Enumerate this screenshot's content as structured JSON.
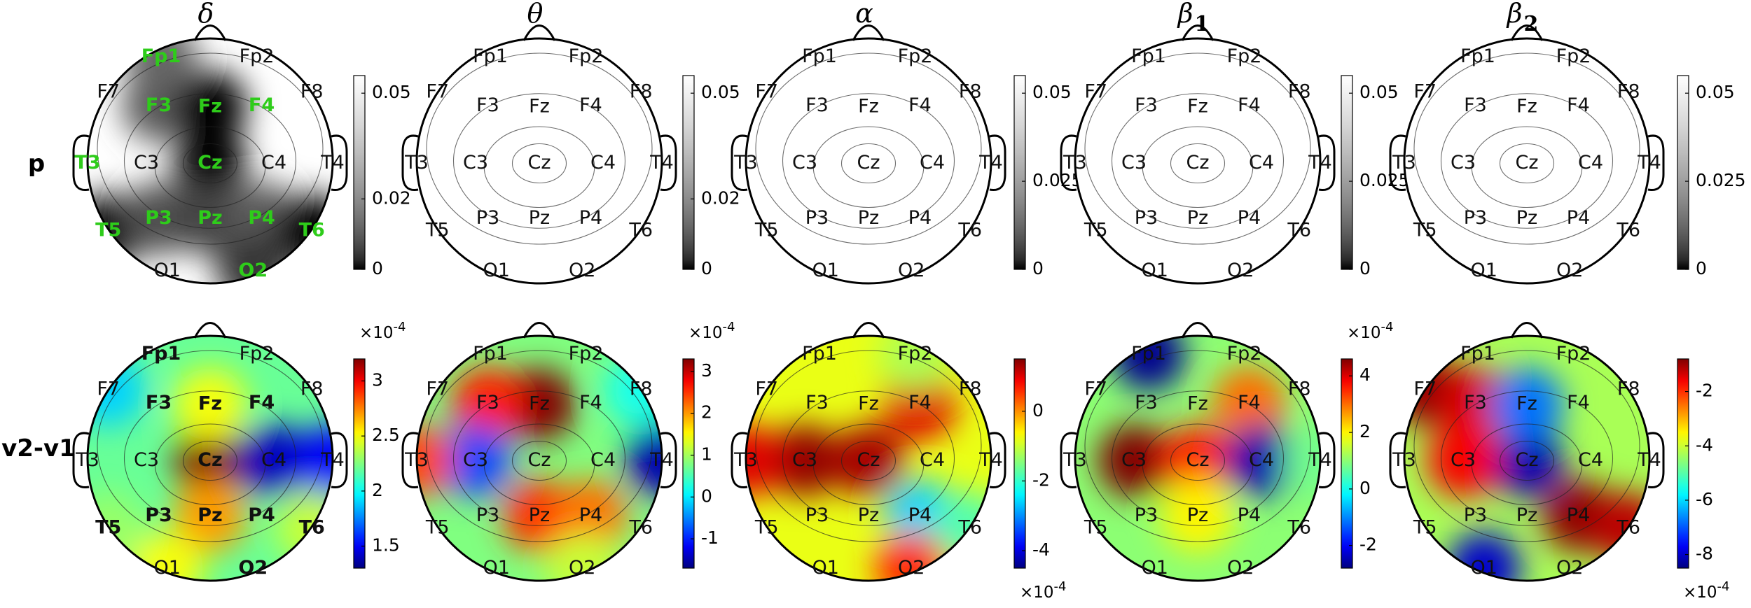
{
  "figure": {
    "row_labels": [
      "p",
      "v2-v1"
    ],
    "electrodes": [
      "Fp1",
      "Fp2",
      "F7",
      "F3",
      "Fz",
      "F4",
      "F8",
      "T3",
      "C3",
      "Cz",
      "C4",
      "T4",
      "T5",
      "P3",
      "Pz",
      "P4",
      "T6",
      "O1",
      "O2"
    ],
    "multiplier_label": "×10",
    "multiplier_exp": "-4"
  },
  "chart_data": [
    {
      "type": "heatmap",
      "row": "p",
      "band": "δ",
      "sub": "",
      "colormap": "gray",
      "ticks": [
        "0.05",
        "0.02",
        "0"
      ],
      "tick_values": [
        0.05,
        0.02,
        0
      ],
      "clim": [
        0,
        0.055
      ],
      "sig_electrodes": [
        "Fp1",
        "F3",
        "Fz",
        "F4",
        "T3",
        "Cz",
        "T5",
        "P3",
        "Pz",
        "P4",
        "T6",
        "O2"
      ],
      "bold_electrodes": [],
      "blobs": [
        {
          "e": "F3",
          "v": 0.01
        },
        {
          "e": "Fz",
          "v": 0.0
        },
        {
          "e": "Cz",
          "v": 0.0
        },
        {
          "e": "Fp1",
          "v": 0.012
        },
        {
          "e": "T5",
          "v": 0.0
        },
        {
          "e": "P3",
          "v": 0.008
        },
        {
          "e": "Pz",
          "v": 0.006
        },
        {
          "e": "P4",
          "v": 0.01
        },
        {
          "e": "T6",
          "v": 0.0
        },
        {
          "e": "O2",
          "v": 0.004
        }
      ]
    },
    {
      "type": "heatmap",
      "row": "p",
      "band": "θ",
      "sub": "",
      "colormap": "gray",
      "ticks": [
        "0.05",
        "0.02",
        "0"
      ],
      "tick_values": [
        0.05,
        0.02,
        0
      ],
      "clim": [
        0,
        0.055
      ],
      "sig_electrodes": [],
      "bold_electrodes": [],
      "blobs": []
    },
    {
      "type": "heatmap",
      "row": "p",
      "band": "α",
      "sub": "",
      "colormap": "gray",
      "ticks": [
        "0.05",
        "0.025",
        "0"
      ],
      "tick_values": [
        0.05,
        0.025,
        0
      ],
      "clim": [
        0,
        0.055
      ],
      "sig_electrodes": [],
      "bold_electrodes": [],
      "blobs": []
    },
    {
      "type": "heatmap",
      "row": "p",
      "band": "β",
      "sub": "1",
      "colormap": "gray",
      "ticks": [
        "0.05",
        "0.025",
        "0"
      ],
      "tick_values": [
        0.05,
        0.025,
        0
      ],
      "clim": [
        0,
        0.055
      ],
      "sig_electrodes": [],
      "bold_electrodes": [],
      "blobs": []
    },
    {
      "type": "heatmap",
      "row": "p",
      "band": "β",
      "sub": "2",
      "colormap": "gray",
      "ticks": [
        "0.05",
        "0.025",
        "0"
      ],
      "tick_values": [
        0.05,
        0.025,
        0
      ],
      "clim": [
        0,
        0.055
      ],
      "sig_electrodes": [],
      "bold_electrodes": [],
      "blobs": []
    },
    {
      "type": "heatmap",
      "row": "v2-v1",
      "band": "δ",
      "colormap": "jet",
      "ticks": [
        "3",
        "2.5",
        "2",
        "1.5"
      ],
      "tick_values": [
        3,
        2.5,
        2,
        1.5
      ],
      "clim": [
        1.3,
        3.2
      ],
      "exp_pos": "top",
      "sig_electrodes": [],
      "bold_electrodes": [
        "Fp1",
        "F3",
        "Fz",
        "F4",
        "Cz",
        "T5",
        "P3",
        "Pz",
        "P4",
        "T6",
        "O2"
      ],
      "blobs": [
        {
          "e": "Cz",
          "v": 3.2
        },
        {
          "e": "Pz",
          "v": 2.7
        },
        {
          "e": "Fz",
          "v": 2.5
        },
        {
          "e": "C4",
          "v": 1.4
        },
        {
          "e": "T4",
          "v": 1.5
        },
        {
          "e": "F7",
          "v": 1.9
        },
        {
          "e": "T6",
          "v": 2.4
        },
        {
          "e": "T5",
          "v": 2.3
        },
        {
          "e": "O1",
          "v": 2.5
        }
      ]
    },
    {
      "type": "heatmap",
      "row": "v2-v1",
      "band": "θ",
      "colormap": "jet",
      "ticks": [
        "3",
        "2",
        "1",
        "0",
        "-1"
      ],
      "tick_values": [
        3,
        2,
        1,
        0,
        -1
      ],
      "clim": [
        -1.7,
        3.3
      ],
      "exp_pos": "top",
      "sig_electrodes": [],
      "bold_electrodes": [],
      "blobs": [
        {
          "e": "Fz",
          "v": 3.3
        },
        {
          "e": "F3",
          "v": 2.6
        },
        {
          "e": "Pz",
          "v": 2.5
        },
        {
          "e": "P4",
          "v": 2.2
        },
        {
          "e": "T4",
          "v": -1.5
        },
        {
          "e": "C3",
          "v": -0.8
        },
        {
          "e": "O2",
          "v": 1.2
        },
        {
          "e": "F8",
          "v": 0.2
        },
        {
          "e": "T3",
          "v": 2.4
        }
      ]
    },
    {
      "type": "heatmap",
      "row": "v2-v1",
      "band": "α",
      "colormap": "jet",
      "ticks": [
        "0",
        "-2",
        "-4"
      ],
      "tick_values": [
        0,
        -2,
        -4
      ],
      "clim": [
        -4.5,
        1.5
      ],
      "exp_pos": "bottom",
      "sig_electrodes": [],
      "bold_electrodes": [],
      "blobs": [
        {
          "e": "C3",
          "v": 1.4
        },
        {
          "e": "Cz",
          "v": 1.3
        },
        {
          "e": "F4",
          "v": 1.0
        },
        {
          "e": "T3",
          "v": 1.0
        },
        {
          "e": "P4",
          "v": -2.6
        },
        {
          "e": "T6",
          "v": -1.8
        },
        {
          "e": "Fp2",
          "v": -1.2
        },
        {
          "e": "O2",
          "v": 0.6
        }
      ]
    },
    {
      "type": "heatmap",
      "row": "v2-v1",
      "band": "β",
      "colormap": "jet",
      "ticks": [
        "4",
        "2",
        "0",
        "-2"
      ],
      "tick_values": [
        4,
        2,
        0,
        -2
      ],
      "clim": [
        -2.8,
        4.6
      ],
      "exp_pos": "top",
      "sig_electrodes": [],
      "bold_electrodes": [],
      "blobs": [
        {
          "e": "C3",
          "v": 4.6
        },
        {
          "e": "Cz",
          "v": 3.6
        },
        {
          "e": "F4",
          "v": 3.0
        },
        {
          "e": "Fp1",
          "v": -2.7
        },
        {
          "e": "C4",
          "v": -2.5
        },
        {
          "e": "Pz",
          "v": 2.0
        },
        {
          "e": "T4",
          "v": 0.8
        }
      ]
    },
    {
      "type": "heatmap",
      "row": "v2-v1",
      "band": "β",
      "colormap": "jet",
      "ticks": [
        "-2",
        "-4",
        "-6",
        "-8"
      ],
      "tick_values": [
        -2,
        -4,
        -6,
        -8
      ],
      "clim": [
        -8.5,
        -0.8
      ],
      "exp_pos": "bottom",
      "sig_electrodes": [],
      "bold_electrodes": [],
      "blobs": [
        {
          "e": "F7",
          "v": -0.9
        },
        {
          "e": "F3",
          "v": -1.4
        },
        {
          "e": "P4",
          "v": -0.9
        },
        {
          "e": "T6",
          "v": -1.2
        },
        {
          "e": "Cz",
          "v": -8.2
        },
        {
          "e": "Fz",
          "v": -6.8
        },
        {
          "e": "O1",
          "v": -8.0
        },
        {
          "e": "C3",
          "v": -1.6
        }
      ]
    }
  ]
}
